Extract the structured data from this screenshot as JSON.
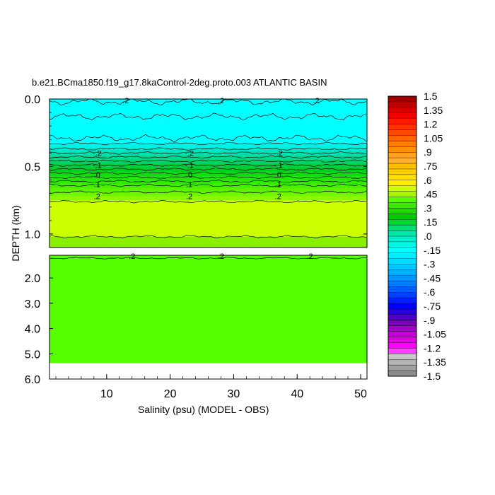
{
  "chart_data": {
    "type": "heatmap",
    "title": "b.e21.BCma1850.f19_g17.8kaControl-2deg.proto.003 ATLANTIC BASIN",
    "xlabel": "Salinity (psu) (MODEL - OBS)",
    "ylabel": "DEPTH (km)",
    "xlim": [
      1,
      51
    ],
    "upper_panel": {
      "ylim": [
        0.0,
        1.1
      ],
      "y_ticks": [
        {
          "value": 0.0,
          "label": "0.0"
        },
        {
          "value": 0.5,
          "label": "0.5"
        },
        {
          "value": 1.0,
          "label": "1.0"
        }
      ]
    },
    "lower_panel": {
      "ylim": [
        1.1,
        6.0
      ],
      "y_ticks": [
        {
          "value": 2.0,
          "label": "2.0"
        },
        {
          "value": 3.0,
          "label": "3.0"
        },
        {
          "value": 4.0,
          "label": "4.0"
        },
        {
          "value": 5.0,
          "label": "5.0"
        },
        {
          "value": 6.0,
          "label": "6.0"
        }
      ],
      "data_bottom_depth": 5.35
    },
    "x_ticks": [
      {
        "value": 10,
        "label": "10"
      },
      {
        "value": 20,
        "label": "20"
      },
      {
        "value": 30,
        "label": "30"
      },
      {
        "value": 40,
        "label": "40"
      },
      {
        "value": 50,
        "label": "50"
      }
    ],
    "field_bands": [
      {
        "top": 0.0,
        "bottom": 0.33,
        "color": "#00ffff"
      },
      {
        "top": 0.33,
        "bottom": 0.36,
        "color": "#00f2e6"
      },
      {
        "top": 0.36,
        "bottom": 0.39,
        "color": "#00e8cc"
      },
      {
        "top": 0.39,
        "bottom": 0.42,
        "color": "#00e0b0"
      },
      {
        "top": 0.42,
        "bottom": 0.45,
        "color": "#00d98f"
      },
      {
        "top": 0.45,
        "bottom": 0.48,
        "color": "#00d46a"
      },
      {
        "top": 0.48,
        "bottom": 0.51,
        "color": "#00cd40"
      },
      {
        "top": 0.51,
        "bottom": 0.54,
        "color": "#00d020"
      },
      {
        "top": 0.54,
        "bottom": 0.57,
        "color": "#10dc10"
      },
      {
        "top": 0.57,
        "bottom": 0.6,
        "color": "#20e40a"
      },
      {
        "top": 0.6,
        "bottom": 0.63,
        "color": "#30ea05"
      },
      {
        "top": 0.63,
        "bottom": 0.66,
        "color": "#46f000"
      },
      {
        "top": 0.66,
        "bottom": 0.69,
        "color": "#5af200"
      },
      {
        "top": 0.69,
        "bottom": 0.72,
        "color": "#72f500"
      },
      {
        "top": 0.72,
        "bottom": 0.75,
        "color": "#8cf700"
      },
      {
        "top": 0.75,
        "bottom": 1.02,
        "color": "#ccff00"
      },
      {
        "top": 1.02,
        "bottom": 1.1,
        "color": "#88f000"
      },
      {
        "top": 1.1,
        "bottom": 5.35,
        "color": "#55ff00"
      }
    ],
    "contour_depths": [
      0.02,
      0.13,
      0.29,
      0.33,
      0.37,
      0.4,
      0.43,
      0.46,
      0.49,
      0.52,
      0.55,
      0.58,
      0.61,
      0.64,
      0.69,
      0.76,
      1.02
    ],
    "contour_labels": [
      {
        "label": ".2",
        "x": 13,
        "depth": 0.01
      },
      {
        "label": ".2",
        "x": 28,
        "depth": 0.01
      },
      {
        "label": ".2",
        "x": 43,
        "depth": 0.01
      },
      {
        "label": "-.2",
        "x": 8.5,
        "depth": 0.4
      },
      {
        "label": "-.2",
        "x": 23,
        "depth": 0.4
      },
      {
        "label": "-.2",
        "x": 37,
        "depth": 0.4
      },
      {
        "label": "-.1",
        "x": 8.5,
        "depth": 0.49
      },
      {
        "label": "-.1",
        "x": 23,
        "depth": 0.49
      },
      {
        "label": "-.1",
        "x": 37,
        "depth": 0.49
      },
      {
        "label": ".0",
        "x": 8.5,
        "depth": 0.56
      },
      {
        "label": ".0",
        "x": 23,
        "depth": 0.56
      },
      {
        "label": ".0",
        "x": 37,
        "depth": 0.56
      },
      {
        "label": ".1",
        "x": 8.5,
        "depth": 0.63
      },
      {
        "label": ".1",
        "x": 23,
        "depth": 0.63
      },
      {
        "label": ".1",
        "x": 37,
        "depth": 0.63
      },
      {
        "label": ".2",
        "x": 8.5,
        "depth": 0.72
      },
      {
        "label": ".2",
        "x": 23,
        "depth": 0.72
      },
      {
        "label": ".2",
        "x": 37,
        "depth": 0.72
      },
      {
        "label": ".2",
        "x": 14,
        "depth": 1.13
      },
      {
        "label": ".2",
        "x": 28,
        "depth": 1.13
      },
      {
        "label": ".2",
        "x": 42,
        "depth": 1.13
      }
    ],
    "colorbar": {
      "labels": [
        "1.5",
        "1.35",
        "1.2",
        "1.05",
        ".9",
        ".75",
        ".6",
        ".45",
        ".3",
        ".15",
        ".0",
        "-.15",
        "-.3",
        "-.45",
        "-.6",
        "-.75",
        "-.9",
        "-1.05",
        "-1.2",
        "-1.35",
        "-1.5"
      ],
      "colors": [
        "#a00000",
        "#be0000",
        "#d80000",
        "#f00000",
        "#ff1a00",
        "#ff3200",
        "#ff4b00",
        "#ff6400",
        "#ff7d00",
        "#ff9100",
        "#ffa020",
        "#ffb030",
        "#ffc000",
        "#ffd000",
        "#ffe000",
        "#ffee00",
        "#ccff00",
        "#a8f500",
        "#55ff00",
        "#3ce800",
        "#20d800",
        "#00cc00",
        "#00d830",
        "#00e070",
        "#00e8a8",
        "#00f0cc",
        "#00f8e6",
        "#00ffff",
        "#00eeff",
        "#00dcff",
        "#00c8ff",
        "#00b0ff",
        "#0096ff",
        "#007cff",
        "#0060ff",
        "#0040ff",
        "#0020ff",
        "#0000ff",
        "#2800e0",
        "#5000c8",
        "#7800b4",
        "#a000c8",
        "#c800d8",
        "#e000e0",
        "#ff00ff",
        "#ff40ff",
        "#c8c8c8",
        "#b4b4b4",
        "#a0a0a0",
        "#8c8c8c"
      ]
    }
  }
}
